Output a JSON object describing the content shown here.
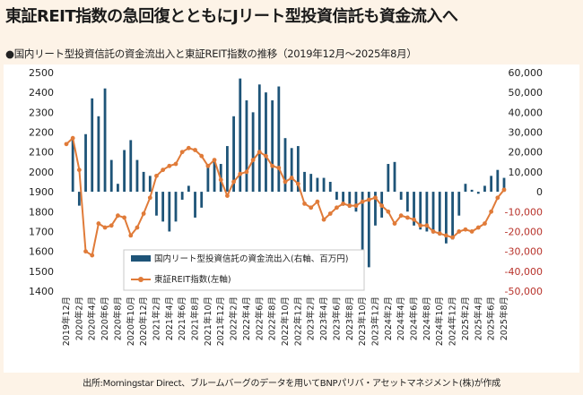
{
  "title": "東証REIT指数の急回復とともにJリート型投資信託も資金流入へ",
  "chart_data": {
    "type": "bar+line",
    "subtitle": "●国内リート型投資信託の資金流出入と東証REIT指数の推移（2019年12月～2025年8月）",
    "source": "出所:Morningstar Direct、ブルームバーグのデータを用いてBNPパリバ・アセットマネジメント(株)が作成",
    "left_axis": {
      "min": 1400,
      "max": 2500,
      "step": 100,
      "label": "東証REIT指数"
    },
    "right_axis": {
      "min": -50000,
      "max": 60000,
      "step": 10000
    },
    "right_tick_labels": [
      "-50,000",
      "-40,000",
      "-30,000",
      "-20,000",
      "-10,000",
      "0",
      "10,000",
      "20,000",
      "30,000",
      "40,000",
      "50,000",
      "60,000"
    ],
    "x_tick_labels": [
      "2019年12月",
      "2020年2月",
      "2020年4月",
      "2020年6月",
      "2020年8月",
      "2020年10月",
      "2020年12月",
      "2021年2月",
      "2021年4月",
      "2021年6月",
      "2021年8月",
      "2021年10月",
      "2021年12月",
      "2022年2月",
      "2022年4月",
      "2022年6月",
      "2022年8月",
      "2022年10月",
      "2022年12月",
      "2023年2月",
      "2023年4月",
      "2023年6月",
      "2023年8月",
      "2023年10月",
      "2023年12月",
      "2024年2月",
      "2024年4月",
      "2024年6月",
      "2024年8月",
      "2024年10月",
      "2024年12月",
      "2025年2月",
      "2025年4月",
      "2025年6月",
      "2025年8月"
    ],
    "legend": [
      "国内リート型投資信託の資金流出入(右軸、百万円)",
      "東証REIT指数(左軸)"
    ],
    "series": [
      {
        "name": "国内リート型投資信託の資金流出入(右軸、百万円)",
        "type": "bar",
        "axis": "right",
        "color": "#1e5478",
        "values": [
          0,
          26000,
          -7000,
          29000,
          47000,
          38000,
          52000,
          16000,
          4000,
          21000,
          26000,
          16000,
          10000,
          8000,
          -12000,
          -15000,
          -20000,
          -15000,
          -4000,
          3000,
          -13000,
          -8000,
          13000,
          16000,
          14000,
          23000,
          38000,
          57000,
          46000,
          40000,
          54000,
          50000,
          46000,
          53000,
          27000,
          22000,
          23000,
          10000,
          9000,
          7000,
          7000,
          5000,
          -4000,
          -7000,
          -8000,
          -10000,
          -30000,
          -38000,
          -17000,
          -13000,
          14000,
          15000,
          -4000,
          -10000,
          -17000,
          -19000,
          -20000,
          -21000,
          -22000,
          -26000,
          -24000,
          -12000,
          4000,
          1000,
          -1000,
          3000,
          8000,
          11000,
          7000
        ]
      },
      {
        "name": "東証REIT指数(左軸)",
        "type": "line",
        "axis": "left",
        "color": "#e07b39",
        "values": [
          2140,
          2170,
          2010,
          1600,
          1580,
          1740,
          1720,
          1730,
          1780,
          1770,
          1680,
          1720,
          1790,
          1870,
          1980,
          2010,
          2030,
          2040,
          2100,
          2120,
          2110,
          2080,
          2030,
          2060,
          1960,
          1880,
          1950,
          1990,
          2000,
          2060,
          2100,
          2080,
          2030,
          2020,
          1950,
          1970,
          1940,
          1840,
          1820,
          1850,
          1760,
          1790,
          1820,
          1840,
          1830,
          1830,
          1850,
          1860,
          1870,
          1830,
          1800,
          1740,
          1780,
          1770,
          1760,
          1730,
          1730,
          1700,
          1690,
          1680,
          1670,
          1700,
          1710,
          1700,
          1720,
          1740,
          1800,
          1870,
          1910
        ]
      }
    ]
  }
}
